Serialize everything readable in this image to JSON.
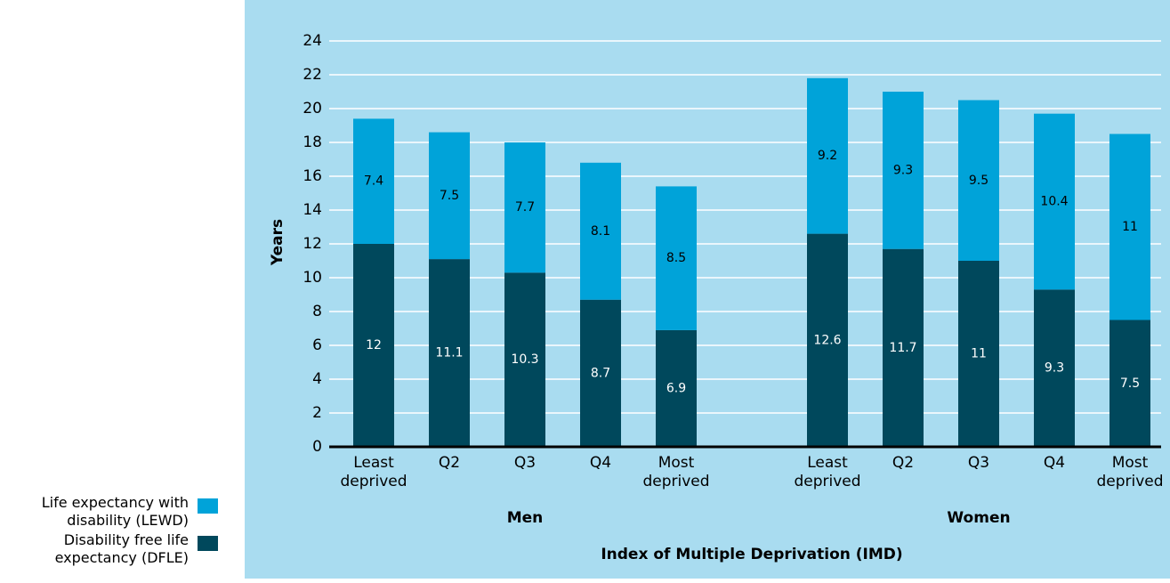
{
  "chart_data": {
    "type": "stacked_bar",
    "y_label": "Years",
    "x_label": "Index of Multiple Deprivation (IMD)",
    "group_labels": [
      "Men",
      "Women"
    ],
    "categories": [
      "Least deprived",
      "Q2",
      "Q3",
      "Q4",
      "Most deprived",
      "Least deprived",
      "Q2",
      "Q3",
      "Q4",
      "Most deprived"
    ],
    "series": [
      {
        "name": "Disability free life expectancy (DFLE)",
        "color": "#00485c",
        "label_color": "#ffffff",
        "values": [
          12,
          11.1,
          10.3,
          8.7,
          6.9,
          12.6,
          11.7,
          11,
          9.3,
          7.5
        ]
      },
      {
        "name": "Life expectancy with disability (LEWD)",
        "color": "#00a3d9",
        "label_color": "#000000",
        "values": [
          7.4,
          7.5,
          7.7,
          8.1,
          8.5,
          9.2,
          9.3,
          9.5,
          10.4,
          11
        ]
      }
    ],
    "ylim": [
      0,
      24
    ],
    "yticks": [
      0,
      2,
      4,
      6,
      8,
      10,
      12,
      14,
      16,
      18,
      20,
      22,
      24
    ],
    "grid": true
  }
}
